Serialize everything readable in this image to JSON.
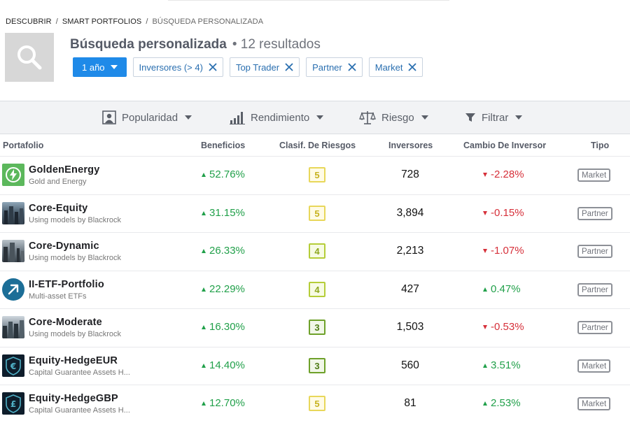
{
  "breadcrumb": {
    "items": [
      "DESCUBRIR",
      "SMART PORTFOLIOS"
    ],
    "current": "BÚSQUEDA PERSONALIZADA",
    "separator": "/"
  },
  "header": {
    "title": "Búsqueda personalizada",
    "results": "• 12 resultados",
    "icon": "search-icon"
  },
  "filters": {
    "period": "1 año",
    "chips": [
      "Inversores (> 4)",
      "Top Trader",
      "Partner",
      "Market"
    ]
  },
  "toolbar": {
    "popularity": "Popularidad",
    "performance": "Rendimiento",
    "risk": "Riesgo",
    "filter": "Filtrar"
  },
  "table": {
    "headers": {
      "portfolio": "Portafolio",
      "gains": "Beneficios",
      "risk": "Clasif. De Riesgos",
      "investors": "Inversores",
      "change": "Cambio De Inversor",
      "type": "Tipo"
    },
    "rows": [
      {
        "name": "GoldenEnergy",
        "subtitle": "Gold and Energy",
        "gain": "52.76%",
        "risk": "5",
        "investors": "728",
        "change": "-2.28%",
        "change_dir": "down",
        "type": "Market",
        "logo": "lightning-icon"
      },
      {
        "name": "Core-Equity",
        "subtitle": "Using models by Blackrock",
        "gain": "31.15%",
        "risk": "5",
        "investors": "3,894",
        "change": "-0.15%",
        "change_dir": "down",
        "type": "Partner",
        "logo": "city-photo-icon"
      },
      {
        "name": "Core-Dynamic",
        "subtitle": "Using models by Blackrock",
        "gain": "26.33%",
        "risk": "4",
        "investors": "2,213",
        "change": "-1.07%",
        "change_dir": "down",
        "type": "Partner",
        "logo": "city-photo-icon"
      },
      {
        "name": "II-ETF-Portfolio",
        "subtitle": "Multi-asset ETFs",
        "gain": "22.29%",
        "risk": "4",
        "investors": "427",
        "change": "0.47%",
        "change_dir": "up",
        "type": "Partner",
        "logo": "arrow-circle-icon"
      },
      {
        "name": "Core-Moderate",
        "subtitle": "Using models by Blackrock",
        "gain": "16.30%",
        "risk": "3",
        "investors": "1,503",
        "change": "-0.53%",
        "change_dir": "down",
        "type": "Partner",
        "logo": "city-photo-icon"
      },
      {
        "name": "Equity-HedgeEUR",
        "subtitle": "Capital Guarantee Assets H...",
        "gain": "14.40%",
        "risk": "3",
        "investors": "560",
        "change": "3.51%",
        "change_dir": "up",
        "type": "Market",
        "logo": "euro-shield-icon"
      },
      {
        "name": "Equity-HedgeGBP",
        "subtitle": "Capital Guarantee Assets H...",
        "gain": "12.70%",
        "risk": "5",
        "investors": "81",
        "change": "2.53%",
        "change_dir": "up",
        "type": "Market",
        "logo": "pound-shield-icon"
      }
    ]
  },
  "colors": {
    "accent": "#1f8ae8",
    "positive": "#21a04a",
    "negative": "#d6303a",
    "chip_text": "#2a6fb0"
  }
}
